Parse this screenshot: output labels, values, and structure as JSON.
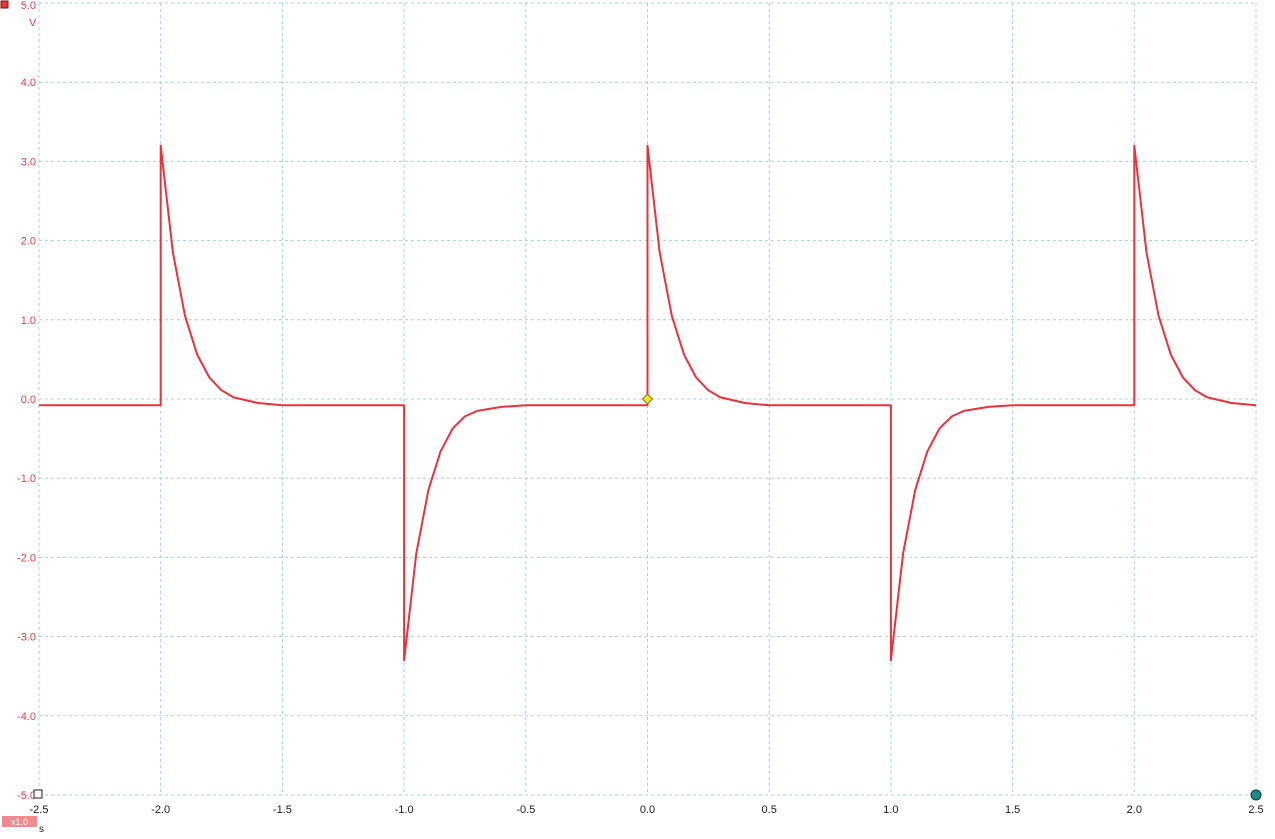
{
  "colors": {
    "trace": "#e8323c",
    "axis_label": "#e0404a",
    "grid": "#9fd3df",
    "trigger_marker": "#f4e41a",
    "cursor_marker": "#1a8a8a",
    "scale_badge": "#f08a90"
  },
  "channel": {
    "unit_v": "V",
    "unit_s": "s",
    "scale_badge": "x1.0"
  },
  "icons": {
    "channel": "channel-a-square-icon",
    "trigger": "trigger-diamond-icon",
    "ruler_left": "ruler-handle-square-icon",
    "ruler_right": "ruler-handle-circle-icon"
  },
  "chart_data": {
    "type": "line",
    "title": "",
    "xlabel": "s",
    "ylabel": "V",
    "xlim": [
      -2.5,
      2.5
    ],
    "ylim": [
      -5.0,
      5.0
    ],
    "grid": true,
    "x_ticks": [
      "-2.5",
      "-2.0",
      "-1.5",
      "-1.0",
      "-0.5",
      "0.0",
      "0.5",
      "1.0",
      "1.5",
      "2.0",
      "2.5"
    ],
    "y_ticks": [
      "5.0",
      "4.0",
      "3.0",
      "2.0",
      "1.0",
      "0.0",
      "-1.0",
      "-2.0",
      "-3.0",
      "-4.0",
      "-5.0"
    ],
    "series": [
      {
        "x": [
          -2.5,
          -2.0,
          -2.0,
          -1.95,
          -1.9,
          -1.85,
          -1.8,
          -1.75,
          -1.7,
          -1.6,
          -1.5,
          -1.0,
          -1.0,
          -0.95,
          -0.9,
          -0.85,
          -0.8,
          -0.75,
          -0.7,
          -0.6,
          -0.5,
          0.0,
          0.0,
          0.05,
          0.1,
          0.15,
          0.2,
          0.25,
          0.3,
          0.4,
          0.5,
          1.0,
          1.0,
          1.05,
          1.1,
          1.15,
          1.2,
          1.25,
          1.3,
          1.4,
          1.5,
          2.0,
          2.0,
          2.05,
          2.1,
          2.15,
          2.2,
          2.25,
          2.3,
          2.4,
          2.5
        ],
        "y": [
          -0.08,
          -0.08,
          3.2,
          1.85,
          1.05,
          0.56,
          0.27,
          0.11,
          0.02,
          -0.05,
          -0.08,
          -0.08,
          -3.3,
          -1.95,
          -1.15,
          -0.66,
          -0.37,
          -0.22,
          -0.15,
          -0.1,
          -0.08,
          -0.08,
          3.2,
          1.85,
          1.05,
          0.56,
          0.27,
          0.11,
          0.02,
          -0.05,
          -0.08,
          -0.08,
          -3.3,
          -1.95,
          -1.15,
          -0.66,
          -0.37,
          -0.22,
          -0.15,
          -0.1,
          -0.08,
          -0.08,
          3.2,
          1.85,
          1.05,
          0.56,
          0.27,
          0.11,
          0.02,
          -0.05,
          -0.08
        ]
      }
    ],
    "trigger": {
      "x": 0.0,
      "y": 0.0
    }
  }
}
